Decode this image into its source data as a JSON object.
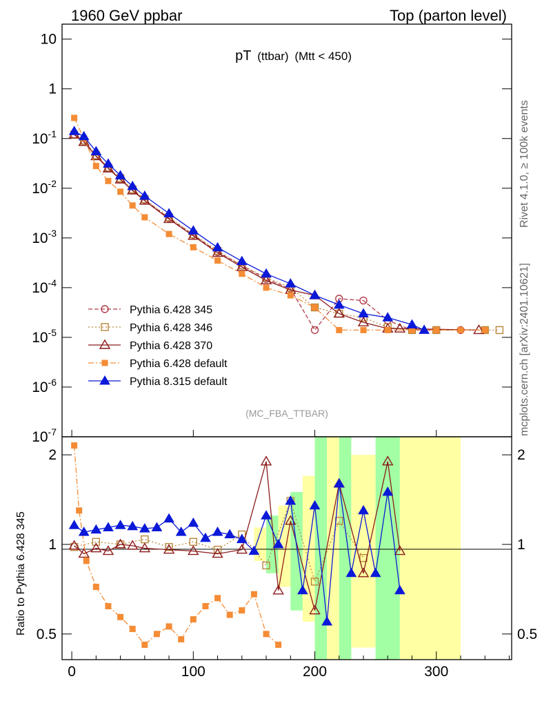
{
  "header": {
    "left": "1960 GeV ppbar",
    "right": "Top (parton level)"
  },
  "side_labels": {
    "top": "Rivet 4.1.0, ≥ 100k events",
    "bottom": "mcplots.cern.ch [arXiv:2401.10621]"
  },
  "colors": {
    "p345": "#b03a48",
    "p346": "#b8863b",
    "p370": "#8b1a1a",
    "p6default": "#f48c36",
    "p8default": "#0b19d8",
    "ratio_yellow": "#ffff99",
    "ratio_green": "#99ff99"
  },
  "chart_data": [
    {
      "type": "line",
      "title_main": "pT",
      "title_sub": "(ttbar)",
      "title_cond": "(Mtt < 450)",
      "watermark": "(MC_FBA_TTBAR)",
      "xlim": [
        -8,
        362
      ],
      "ylim": [
        1e-07,
        20
      ],
      "yscale": "log",
      "x_ticks": [
        "0",
        "100",
        "200",
        "300"
      ],
      "y_ticks": [
        "10",
        "1",
        "10-1",
        "10-2",
        "10-3",
        "10-4",
        "10-5",
        "10-6",
        "10-7"
      ],
      "legend": [
        "Pythia 6.428 345",
        "Pythia 6.428 346",
        "Pythia 6.428 370",
        "Pythia 6.428 default",
        "Pythia 8.315 default"
      ],
      "series": [
        {
          "name": "Pythia 6.428 345",
          "marker": "circle-open",
          "x": [
            2,
            10,
            20,
            30,
            40,
            50,
            60,
            80,
            100,
            120,
            140,
            160,
            180,
            200,
            220,
            240,
            260,
            280,
            300,
            320
          ],
          "values": [
            0.12,
            0.09,
            0.045,
            0.026,
            0.015,
            0.009,
            0.0058,
            0.0025,
            0.00115,
            0.00052,
            0.00028,
            0.00015,
            9.5e-05,
            1.4e-05,
            6e-05,
            5.5e-05,
            2.2e-05,
            1.4e-05,
            1.4e-05,
            1.4e-05
          ]
        },
        {
          "name": "Pythia 6.428 346",
          "marker": "square-open",
          "x": [
            2,
            10,
            20,
            30,
            40,
            50,
            60,
            80,
            100,
            120,
            140,
            160,
            180,
            200,
            220,
            240,
            260,
            280,
            300,
            340,
            352
          ],
          "values": [
            0.12,
            0.09,
            0.046,
            0.026,
            0.016,
            0.0095,
            0.006,
            0.0026,
            0.00118,
            0.00055,
            0.00028,
            0.00016,
            0.0001,
            4e-05,
            3e-05,
            2.5e-05,
            1.6e-05,
            1.4e-05,
            1.4e-05,
            1.4e-05,
            1.4e-05
          ]
        },
        {
          "name": "Pythia 6.428 370",
          "marker": "triangle-open",
          "x": [
            2,
            10,
            20,
            30,
            40,
            50,
            60,
            80,
            100,
            120,
            140,
            160,
            180,
            200,
            220,
            240,
            260,
            270,
            335
          ],
          "values": [
            0.12,
            0.085,
            0.044,
            0.025,
            0.015,
            0.009,
            0.0056,
            0.0024,
            0.0011,
            0.0005,
            0.00026,
            0.00014,
            9e-05,
            7e-05,
            3e-05,
            2e-05,
            1.5e-05,
            1.5e-05,
            1.4e-05
          ]
        },
        {
          "name": "Pythia 6.428 default",
          "marker": "square-filled",
          "x": [
            2,
            10,
            20,
            30,
            40,
            50,
            60,
            80,
            100,
            120,
            140,
            160,
            180,
            200,
            220,
            240,
            260,
            280,
            300,
            320,
            340
          ],
          "values": [
            0.26,
            0.1,
            0.028,
            0.014,
            0.0085,
            0.0045,
            0.0026,
            0.0012,
            0.00065,
            0.00035,
            0.00019,
            0.0001,
            7e-05,
            4e-05,
            1.4e-05,
            1.4e-05,
            1.4e-05,
            1.4e-05,
            1.4e-05,
            1.4e-05,
            1.4e-05
          ]
        },
        {
          "name": "Pythia 8.315 default",
          "marker": "triangle-filled",
          "x": [
            2,
            10,
            20,
            30,
            40,
            50,
            60,
            80,
            100,
            120,
            140,
            160,
            180,
            200,
            220,
            240,
            260,
            280,
            290
          ],
          "values": [
            0.14,
            0.11,
            0.055,
            0.031,
            0.018,
            0.011,
            0.007,
            0.0031,
            0.0014,
            0.00064,
            0.00034,
            0.00019,
            0.00012,
            7e-05,
            4.5e-05,
            3e-05,
            2.5e-05,
            1.8e-05,
            1.4e-05
          ]
        }
      ]
    },
    {
      "type": "line",
      "ylabel": "Ratio to Pythia 6.428 345",
      "xlim": [
        -8,
        362
      ],
      "ylim": [
        0.41,
        2.3
      ],
      "yscale": "log",
      "x_ticks": [
        "0",
        "100",
        "200",
        "300"
      ],
      "y_ticks": [
        "2",
        "1",
        "0.5"
      ],
      "band_x": [
        150,
        160,
        170,
        180,
        190,
        200,
        210,
        220,
        230,
        250,
        270,
        320
      ],
      "band_y_lo": [
        0.88,
        0.8,
        0.72,
        0.6,
        0.55,
        0.4,
        0.4,
        0.4,
        0.45,
        0.4,
        0.4,
        0.4
      ],
      "band_y_hi": [
        1.14,
        1.25,
        1.35,
        1.5,
        1.7,
        2.3,
        2.3,
        2.3,
        2.0,
        2.3,
        2.3,
        2.3
      ],
      "series": [
        {
          "name": "Pythia 6.428 345",
          "x": [
            2,
            50,
            100,
            150,
            200,
            250,
            300,
            360
          ],
          "values": [
            1.0,
            1.0,
            1.0,
            1.0,
            1.0,
            1.0,
            1.0,
            1.0
          ]
        },
        {
          "name": "Pythia 6.428 346",
          "x": [
            2,
            20,
            40,
            60,
            80,
            100,
            120,
            140,
            160,
            180,
            200,
            220,
            240
          ],
          "values": [
            0.98,
            1.02,
            1.0,
            1.04,
            0.98,
            1.02,
            0.96,
            1.08,
            0.85,
            1.4,
            0.75,
            1.2,
            0.9
          ]
        },
        {
          "name": "Pythia 6.428 370",
          "x": [
            2,
            10,
            20,
            30,
            40,
            50,
            60,
            80,
            100,
            120,
            140,
            160,
            170,
            180,
            200,
            220,
            240,
            260,
            270
          ],
          "values": [
            0.99,
            0.93,
            0.97,
            0.95,
            1.0,
            0.99,
            0.97,
            0.96,
            0.95,
            0.93,
            0.96,
            1.9,
            0.7,
            1.2,
            0.6,
            1.6,
            0.8,
            1.9,
            0.95
          ]
        },
        {
          "name": "Pythia 6.428 default",
          "x": [
            2,
            6,
            12,
            20,
            30,
            40,
            50,
            60,
            70,
            80,
            90,
            100,
            110,
            120,
            130,
            140,
            150,
            160,
            170
          ],
          "values": [
            2.15,
            1.3,
            0.88,
            0.72,
            0.62,
            0.57,
            0.52,
            0.46,
            0.5,
            0.53,
            0.48,
            0.56,
            0.62,
            0.66,
            0.58,
            0.6,
            0.68,
            0.5,
            0.46
          ]
        },
        {
          "name": "Pythia 8.315 default",
          "x": [
            2,
            10,
            20,
            30,
            40,
            50,
            60,
            70,
            80,
            90,
            100,
            110,
            120,
            130,
            140,
            150,
            160,
            170,
            180,
            190,
            200,
            210,
            220,
            230,
            240,
            250,
            260,
            270
          ],
          "values": [
            1.16,
            1.1,
            1.12,
            1.14,
            1.16,
            1.15,
            1.13,
            1.14,
            1.22,
            1.1,
            1.18,
            1.05,
            1.1,
            1.08,
            1.04,
            0.95,
            1.25,
            1.0,
            1.4,
            0.7,
            1.35,
            0.55,
            1.6,
            0.8,
            1.3,
            0.8,
            1.5,
            0.7
          ]
        }
      ]
    }
  ]
}
